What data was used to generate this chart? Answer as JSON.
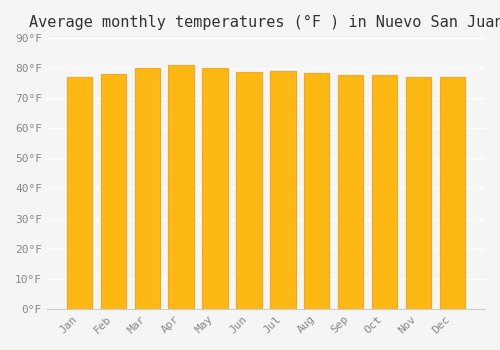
{
  "title": "Average monthly temperatures (°F ) in Nuevo San Juan",
  "months": [
    "Jan",
    "Feb",
    "Mar",
    "Apr",
    "May",
    "Jun",
    "Jul",
    "Aug",
    "Sep",
    "Oct",
    "Nov",
    "Dec"
  ],
  "values": [
    77.2,
    78.2,
    80.1,
    81.1,
    80.1,
    78.8,
    79.0,
    78.4,
    77.9,
    77.9,
    77.0,
    77.0
  ],
  "bar_color": "#FDB813",
  "bar_edge_color": "#F5A623",
  "background_color": "#F5F5F5",
  "grid_color": "#FFFFFF",
  "title_fontsize": 11,
  "tick_fontsize": 8,
  "ylim": [
    0,
    90
  ],
  "yticks": [
    0,
    10,
    20,
    30,
    40,
    50,
    60,
    70,
    80,
    90
  ]
}
